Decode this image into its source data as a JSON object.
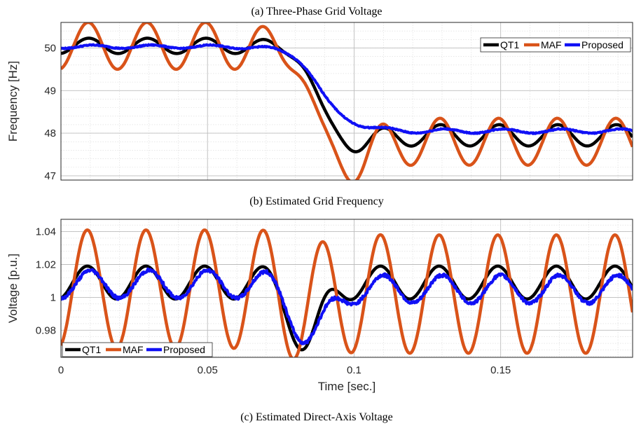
{
  "captions": {
    "a": "(a)    Three-Phase Grid Voltage",
    "b": "(b)    Estimated Grid Frequency",
    "c": "(c)    Estimated Direct-Axis Voltage"
  },
  "chart_data": [
    {
      "id": "frequency",
      "type": "line",
      "xlabel": "",
      "ylabel": "Frequency [Hz]",
      "xlim": [
        0,
        0.195
      ],
      "ylim": [
        46.9,
        50.6
      ],
      "grid": true,
      "y_ticks": [
        47,
        48,
        49,
        50
      ],
      "y_tick_labels": [
        "47",
        "48",
        "49",
        "50"
      ],
      "legend": {
        "position": "top-right",
        "orientation": "horizontal"
      },
      "series": [
        {
          "name": "QT1",
          "color": "#000000",
          "width": 4.5,
          "model": {
            "type": "freq",
            "pre": 50.05,
            "post": 47.95,
            "amp_pre": 0.18,
            "amp_post": 0.25,
            "period": 0.02,
            "phase": 0.0045,
            "tmid": 0.087,
            "tau": 0.0035,
            "ov_amp": -0.25,
            "ov_t": 0.1,
            "ov_w": 0.009,
            "noise": 0.0
          }
        },
        {
          "name": "MAF",
          "color": "#D95319",
          "width": 4.5,
          "model": {
            "type": "freq",
            "pre": 50.05,
            "post": 47.8,
            "amp_pre": 0.55,
            "amp_post": 0.55,
            "period": 0.02,
            "phase": 0.0043,
            "tmid": 0.086,
            "tau": 0.004,
            "ov_amp": -0.65,
            "ov_t": 0.097,
            "ov_w": 0.01,
            "noise": 0.0
          }
        },
        {
          "name": "Proposed",
          "color": "#1010F5",
          "width": 4,
          "model": {
            "type": "freq",
            "pre": 50.03,
            "post": 48.05,
            "amp_pre": 0.04,
            "amp_post": 0.05,
            "period": 0.02,
            "phase": 0.006,
            "tmid": 0.088,
            "tau": 0.0045,
            "ov_amp": 0.08,
            "ov_t": 0.097,
            "ov_w": 0.012,
            "noise": 0.025
          }
        }
      ]
    },
    {
      "id": "direct-axis-voltage",
      "type": "line",
      "xlabel": "Time [sec.]",
      "ylabel": "Voltage [p.u.]",
      "xlim": [
        0,
        0.195
      ],
      "ylim": [
        0.9635,
        1.0475
      ],
      "grid": true,
      "x_ticks": [
        0,
        0.05,
        0.1,
        0.15
      ],
      "x_tick_labels": [
        "0",
        "0.05",
        "0.1",
        "0.15"
      ],
      "y_ticks": [
        0.98,
        1.0,
        1.02,
        1.04
      ],
      "y_tick_labels": [
        "0.98",
        "1",
        "1.02",
        "1.04"
      ],
      "legend": {
        "position": "bottom-left",
        "orientation": "horizontal"
      },
      "series": [
        {
          "name": "QT1",
          "color": "#000000",
          "width": 4.5,
          "model": {
            "type": "volt",
            "base": 1.009,
            "amp": 0.01,
            "period": 0.02,
            "phase": 0.004,
            "dip": -0.038,
            "dip_t": 0.084,
            "dip_w": 0.007,
            "noise": 0.0,
            "post_shift": 0.0
          }
        },
        {
          "name": "MAF",
          "color": "#D95319",
          "width": 4.5,
          "model": {
            "type": "volt",
            "base": 1.005,
            "amp": 0.036,
            "period": 0.02,
            "phase": 0.004,
            "dip": -0.01,
            "dip_t": 0.084,
            "dip_w": 0.007,
            "noise": 0.0,
            "post_shift": -0.003
          }
        },
        {
          "name": "Proposed",
          "color": "#1010F5",
          "width": 4,
          "model": {
            "type": "volt",
            "base": 1.008,
            "amp": 0.0085,
            "period": 0.02,
            "phase": 0.005,
            "dip": -0.032,
            "dip_t": 0.085,
            "dip_w": 0.008,
            "noise": 0.002,
            "post_shift": -0.003
          }
        }
      ]
    }
  ]
}
